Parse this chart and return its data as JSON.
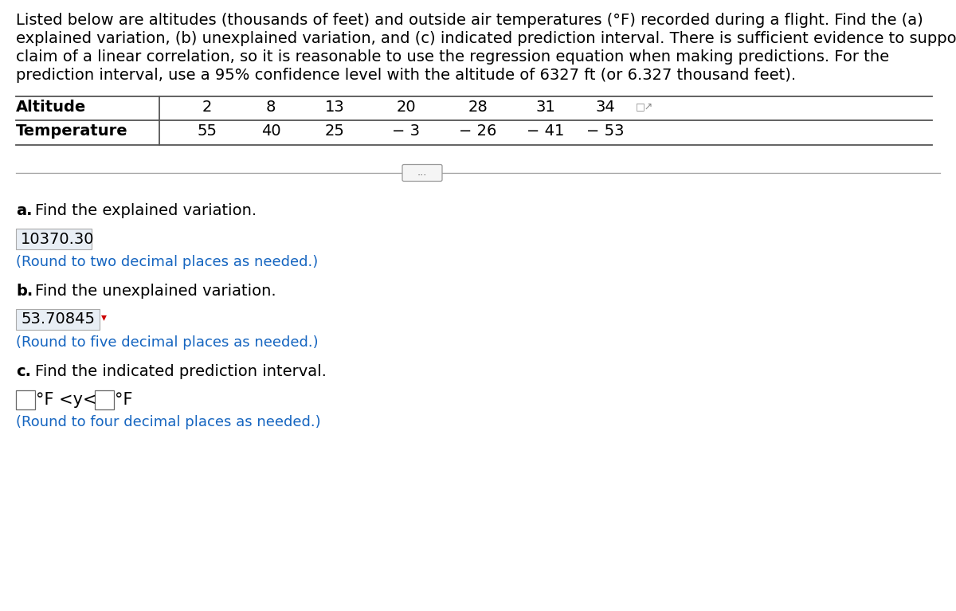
{
  "intro_lines": [
    "Listed below are altitudes (thousands of feet) and outside air temperatures (°F) recorded during a flight. Find the (a)",
    "explained variation, (b) unexplained variation, and (c) indicated prediction interval. There is sufficient evidence to support a",
    "claim of a linear correlation, so it is reasonable to use the regression equation when making predictions. For the",
    "prediction interval, use a 95% confidence level with the altitude of 6327 ft (or 6.327 thousand feet)."
  ],
  "altitudes": [
    "2",
    "8",
    "13",
    "20",
    "28",
    "31",
    "34"
  ],
  "temperatures": [
    "55",
    "40",
    "25",
    "− 3",
    "− 26",
    "− 41",
    "− 53"
  ],
  "part_a_answer": "10370.30",
  "part_a_round": "(Round to two decimal places as needed.)",
  "part_b_answer": "53.70845",
  "part_b_round": "(Round to five decimal places as needed.)",
  "part_c_round": "(Round to four decimal places as needed.)",
  "bg_color": "#ffffff",
  "text_color": "#000000",
  "blue_color": "#1565c0",
  "answer_box_bg": "#e8eef5",
  "answer_border": "#aaaaaa",
  "line_color": "#555555",
  "divider_color": "#999999",
  "font_size_intro": 14.0,
  "font_size_table": 14.0,
  "font_size_answer": 14.0,
  "font_size_blue": 13.0
}
